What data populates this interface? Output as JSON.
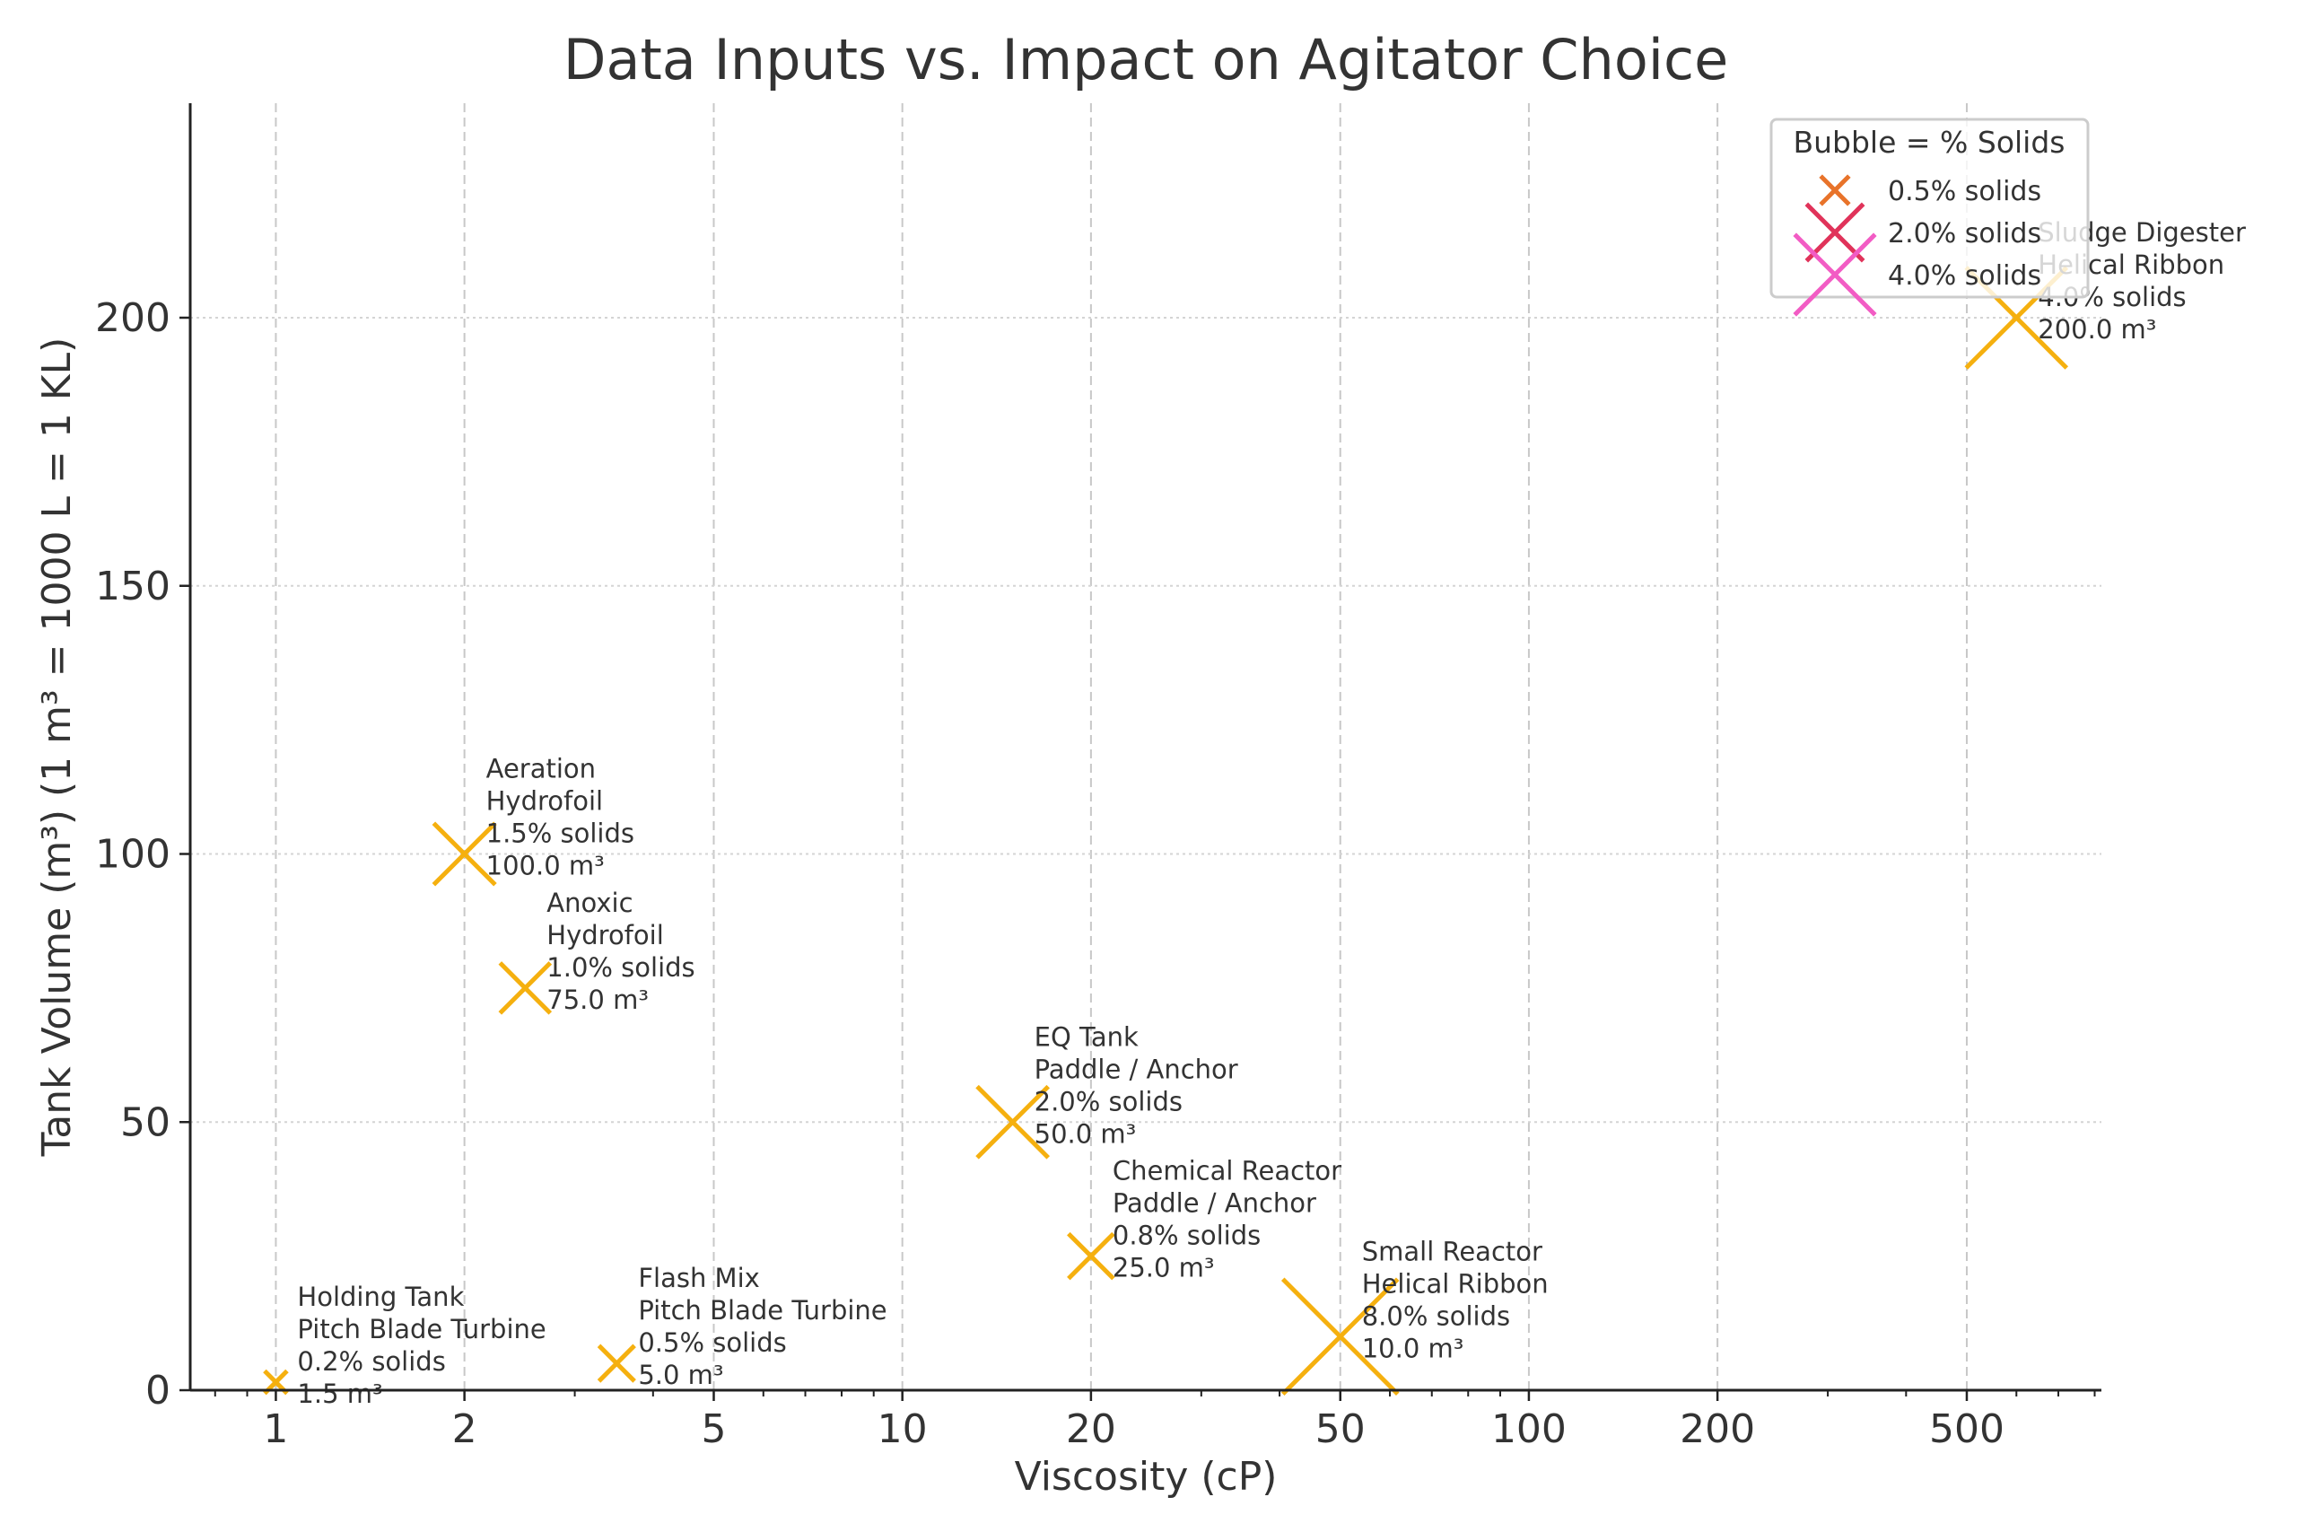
{
  "chart_data": {
    "type": "scatter",
    "title": "Data Inputs vs. Impact on Agitator Choice",
    "xlabel": "Viscosity (cP)",
    "ylabel": "Tank Volume (m³) (1 m³ = 1000 L = 1 KL)",
    "xscale": "log",
    "xlim": [
      0.73,
      820
    ],
    "ylim": [
      0,
      240
    ],
    "xticks": [
      1,
      2,
      5,
      10,
      20,
      50,
      100,
      200,
      500
    ],
    "xtick_labels": [
      "1",
      "2",
      "5",
      "10",
      "20",
      "50",
      "100",
      "200",
      "500"
    ],
    "yticks": [
      0,
      50,
      100,
      150,
      200
    ],
    "ytick_labels": [
      "0",
      "50",
      "100",
      "150",
      "200"
    ],
    "grid": true,
    "marker": "x",
    "marker_color": "#F5B00F",
    "points": [
      {
        "name": "Holding Tank",
        "agitator": "Pitch Blade Turbine",
        "x": 1,
        "y": 1.5,
        "solids": 0.2,
        "label": [
          "Holding Tank",
          "Pitch Blade Turbine",
          "0.2% solids",
          "1.5 m³"
        ]
      },
      {
        "name": "Flash Mix",
        "agitator": "Pitch Blade Turbine",
        "x": 3.5,
        "y": 5,
        "solids": 0.5,
        "label": [
          "Flash Mix",
          "Pitch Blade Turbine",
          "0.5% solids",
          "5.0 m³"
        ]
      },
      {
        "name": "Aeration",
        "agitator": "Hydrofoil",
        "x": 2,
        "y": 100,
        "solids": 1.5,
        "label": [
          "Aeration",
          "Hydrofoil",
          "1.5% solids",
          "100.0 m³"
        ]
      },
      {
        "name": "Anoxic",
        "agitator": "Hydrofoil",
        "x": 2.5,
        "y": 75,
        "solids": 1.0,
        "label": [
          "Anoxic",
          "Hydrofoil",
          "1.0% solids",
          "75.0 m³"
        ]
      },
      {
        "name": "EQ Tank",
        "agitator": "Paddle / Anchor",
        "x": 15,
        "y": 50,
        "solids": 2.0,
        "label": [
          "EQ Tank",
          "Paddle / Anchor",
          "2.0% solids",
          "50.0 m³"
        ]
      },
      {
        "name": "Chemical Reactor",
        "agitator": "Paddle / Anchor",
        "x": 20,
        "y": 25,
        "solids": 0.8,
        "label": [
          "Chemical Reactor",
          "Paddle / Anchor",
          "0.8% solids",
          "25.0 m³"
        ]
      },
      {
        "name": "Small Reactor",
        "agitator": "Helical Ribbon",
        "x": 50,
        "y": 10,
        "solids": 8.0,
        "label": [
          "Small Reactor",
          "Helical Ribbon",
          "8.0% solids",
          "10.0 m³"
        ]
      },
      {
        "name": "Sludge Digester",
        "agitator": "Helical Ribbon",
        "x": 600,
        "y": 200,
        "solids": 4.0,
        "label": [
          "Sludge Digester",
          "Helical Ribbon",
          "4.0% solids",
          "200.0 m³"
        ]
      }
    ],
    "legend": {
      "title": "Bubble = % Solids",
      "placement": "top-right",
      "entries": [
        {
          "label": "0.5% solids",
          "solids": 0.5,
          "color": "#E8732A"
        },
        {
          "label": "2.0% solids",
          "solids": 2.0,
          "color": "#E0335A"
        },
        {
          "label": "4.0% solids",
          "solids": 4.0,
          "color": "#F25CC4"
        }
      ]
    }
  }
}
